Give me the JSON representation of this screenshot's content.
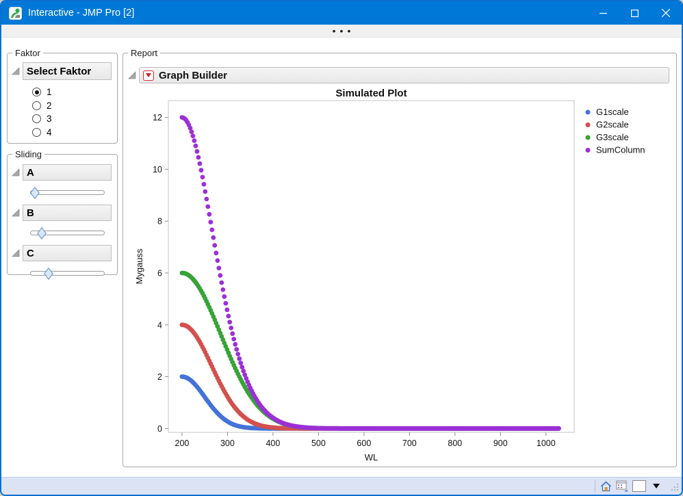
{
  "window": {
    "title": "Interactive - JMP Pro [2]",
    "app_icon": "jmp-logo",
    "controls": [
      "minimize",
      "maximize",
      "close"
    ]
  },
  "splitter": {
    "dots": "•••"
  },
  "faktor_panel": {
    "label": "Faktor",
    "header": "Select Faktor",
    "options": [
      {
        "label": "1",
        "selected": true
      },
      {
        "label": "2",
        "selected": false
      },
      {
        "label": "3",
        "selected": false
      },
      {
        "label": "4",
        "selected": false
      }
    ]
  },
  "sliding_panel": {
    "label": "Sliding",
    "sliders": [
      {
        "label": "A",
        "value_pct": 6
      },
      {
        "label": "B",
        "value_pct": 16
      },
      {
        "label": "C",
        "value_pct": 25
      }
    ]
  },
  "report_panel": {
    "label": "Report",
    "header": "Graph Builder"
  },
  "statusbar": {
    "icons": [
      "home-icon",
      "data-table-icon",
      "color-swatch-button",
      "dropdown-caret"
    ]
  },
  "chart_data": {
    "type": "scatter",
    "title": "Simulated Plot",
    "xlabel": "WL",
    "ylabel": "Mygauss",
    "xlim": [
      170,
      1062
    ],
    "ylim": [
      -0.15,
      12.65
    ],
    "x_ticks": [
      200,
      300,
      400,
      500,
      600,
      700,
      800,
      900,
      1000
    ],
    "y_ticks": [
      0,
      2,
      4,
      6,
      8,
      10,
      12
    ],
    "x_data_start": 200,
    "x_data_end": 1030,
    "point_step": 3,
    "grid": false,
    "legend_position": "right",
    "series": [
      {
        "name": "G1scale",
        "color": "#4472d8",
        "shape": "gaussian",
        "amplitude": 2,
        "center": 200,
        "sigma": 50,
        "peak": [
          200,
          2
        ]
      },
      {
        "name": "G2scale",
        "color": "#d2504e",
        "shape": "gaussian",
        "amplitude": 4,
        "center": 200,
        "sigma": 65,
        "peak": [
          200,
          4
        ]
      },
      {
        "name": "G3scale",
        "color": "#36a336",
        "shape": "gaussian",
        "amplitude": 6,
        "center": 200,
        "sigma": 85,
        "peak": [
          200,
          6
        ]
      },
      {
        "name": "SumColumn",
        "color": "#9c2fd6",
        "shape": "sum",
        "of": [
          0,
          1,
          2
        ],
        "peak": [
          200,
          12
        ]
      }
    ]
  }
}
